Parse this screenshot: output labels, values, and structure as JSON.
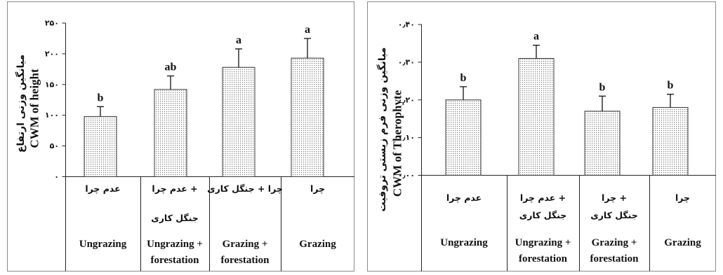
{
  "chart_data": [
    {
      "type": "bar",
      "ylabel": "CWM of height",
      "ylabel_fa": "میانگین وزنی ارتفاع",
      "categories": [
        "Ungrazing",
        "Ungrazing + forestation",
        "Grazing + forestation",
        "Grazing"
      ],
      "categories_fa": [
        [
          "عدم چرا"
        ],
        [
          "عدم چرا +",
          "جنگل کاری"
        ],
        [
          "چرا + جنگل کاری"
        ],
        [
          "چرا"
        ]
      ],
      "values": [
        98,
        142,
        178,
        193
      ],
      "errors": [
        16,
        22,
        30,
        32
      ],
      "letters": [
        "b",
        "ab",
        "a",
        "a"
      ],
      "ylim": [
        0,
        250
      ],
      "yticks": [
        0,
        50,
        100,
        150,
        200,
        250
      ],
      "ytick_labels": [
        "۰",
        "۵۰",
        "۱۰۰",
        "۱۵۰",
        "۲۰۰",
        "۲۵۰"
      ],
      "grid": false
    },
    {
      "type": "bar",
      "ylabel": "CWM of Therophyte",
      "ylabel_fa": "میانگین وزنی فرم زیستی تروفیت",
      "categories": [
        "Ungrazing",
        "Ungrazing + forestation",
        "Grazing + forestation",
        "Grazing"
      ],
      "categories_fa": [
        [
          "عدم چرا"
        ],
        [
          "عدم چرا +",
          "جنگل کاری"
        ],
        [
          "چرا +",
          "جنگل کاری"
        ],
        [
          "چرا"
        ]
      ],
      "values": [
        0.2,
        0.31,
        0.17,
        0.18
      ],
      "errors": [
        0.035,
        0.035,
        0.04,
        0.035
      ],
      "letters": [
        "b",
        "a",
        "b",
        "b"
      ],
      "ylim": [
        0,
        0.4
      ],
      "yticks": [
        0,
        0.1,
        0.2,
        0.3,
        0.4
      ],
      "ytick_labels": [
        "۰٫۰۰",
        "۰٫۱۰",
        "۰٫۲۰",
        "۰٫۳۰",
        "۰٫۴۰"
      ],
      "grid": false
    }
  ],
  "colors": {
    "bar_dots": "#7a7a7a",
    "bar_background": "#ffffff",
    "bar_edge": "#3a3a3a",
    "axis": "#222222",
    "frame": "#8a8a8a"
  }
}
